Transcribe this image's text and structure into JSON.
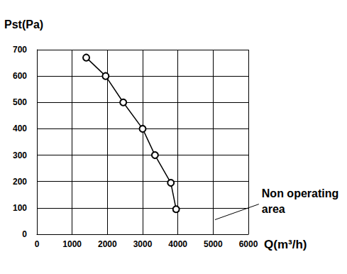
{
  "chart_data": {
    "type": "line",
    "x_label": "Q(m³/h)",
    "y_label": "Pst(Pa)",
    "x": [
      1400,
      1950,
      2450,
      3000,
      3350,
      3800,
      3950
    ],
    "values": [
      670,
      600,
      500,
      400,
      300,
      195,
      95
    ],
    "color": "#000000",
    "marker": "circle",
    "xlim": [
      0,
      6000
    ],
    "xticks": [
      0,
      1000,
      2000,
      3000,
      4000,
      5000,
      6000
    ],
    "ylim": [
      0,
      700
    ],
    "yticks": [
      0,
      100,
      200,
      300,
      400,
      500,
      600,
      700
    ],
    "grid": true,
    "annotations": [
      {
        "text": "Non operating\narea",
        "x": 5050,
        "y": 55
      }
    ]
  }
}
